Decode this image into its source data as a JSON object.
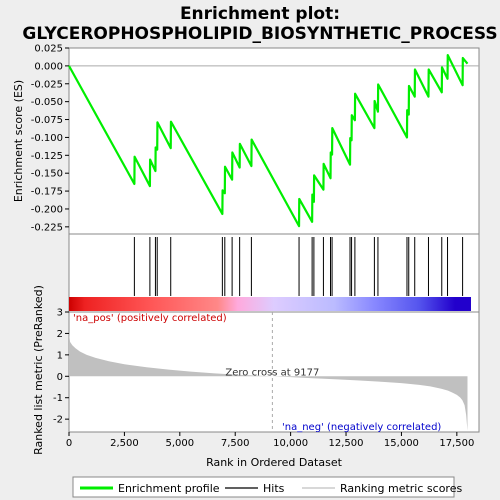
{
  "chart_data": {
    "type": "line",
    "title": "Enrichment plot: GLYCEROPHOSPHOLIPID_BIOSYNTHETIC_PROCESS",
    "title_lines": [
      "Enrichment plot:",
      "GLYCEROPHOSPHOLIPID_BIOSYNTHETIC_PROCESS"
    ],
    "es_panel": {
      "ylabel": "Enrichment score (ES)",
      "ylim": [
        -0.235,
        0.025
      ],
      "yticks": [
        0.025,
        0.0,
        -0.025,
        -0.05,
        -0.075,
        -0.1,
        -0.125,
        -0.15,
        -0.175,
        -0.2,
        -0.225
      ],
      "ytick_labels": [
        "0.025",
        "0.000",
        "-0.025",
        "-0.050",
        "-0.075",
        "-0.100",
        "-0.125",
        "-0.150",
        "-0.175",
        "-0.200",
        "-0.225"
      ],
      "line_color": "#00ee00",
      "series": {
        "name": "Enrichment profile",
        "x": [
          0,
          2950,
          2960,
          3650,
          3660,
          3900,
          3910,
          3980,
          3990,
          4590,
          4600,
          6920,
          6930,
          7030,
          7040,
          7360,
          7370,
          7700,
          7710,
          8230,
          8240,
          10380,
          10390,
          10970,
          10980,
          11050,
          11060,
          11480,
          11490,
          11800,
          11810,
          11870,
          11880,
          12680,
          12690,
          12750,
          12760,
          12900,
          12910,
          13780,
          13790,
          13940,
          13950,
          15250,
          15260,
          15330,
          15340,
          15600,
          15610,
          16220,
          16230,
          16820,
          16830,
          17080,
          17090,
          17760,
          17770,
          17980
        ],
        "y": [
          0.0,
          -0.165,
          -0.127,
          -0.168,
          -0.131,
          -0.147,
          -0.114,
          -0.117,
          -0.079,
          -0.115,
          -0.078,
          -0.207,
          -0.174,
          -0.178,
          -0.141,
          -0.159,
          -0.121,
          -0.142,
          -0.109,
          -0.14,
          -0.103,
          -0.224,
          -0.186,
          -0.218,
          -0.18,
          -0.19,
          -0.153,
          -0.173,
          -0.137,
          -0.157,
          -0.121,
          -0.124,
          -0.087,
          -0.138,
          -0.101,
          -0.104,
          -0.069,
          -0.076,
          -0.039,
          -0.087,
          -0.049,
          -0.064,
          -0.026,
          -0.1,
          -0.062,
          -0.068,
          -0.028,
          -0.043,
          -0.005,
          -0.043,
          -0.005,
          -0.037,
          -0.002,
          -0.018,
          0.015,
          -0.027,
          0.011,
          0.003
        ]
      }
    },
    "hits": {
      "name": "Hits",
      "x": [
        2950,
        3650,
        3900,
        3980,
        4590,
        6920,
        7030,
        7360,
        7700,
        8230,
        10380,
        10970,
        11050,
        11480,
        11800,
        11870,
        12680,
        12750,
        12900,
        13780,
        13940,
        15250,
        15330,
        15600,
        16220,
        16820,
        17080,
        17760
      ]
    },
    "gradient_bar": {
      "stops": [
        {
          "offset": 0.0,
          "color": "#cc0000"
        },
        {
          "offset": 0.04,
          "color": "#ee2222"
        },
        {
          "offset": 0.2,
          "color": "#ff5555"
        },
        {
          "offset": 0.37,
          "color": "#ff8888"
        },
        {
          "offset": 0.42,
          "color": "#ffaadd"
        },
        {
          "offset": 0.51,
          "color": "#ddccff"
        },
        {
          "offset": 0.66,
          "color": "#bbbbff"
        },
        {
          "offset": 0.76,
          "color": "#8888ff"
        },
        {
          "offset": 0.87,
          "color": "#5555ee"
        },
        {
          "offset": 0.96,
          "color": "#2200cc"
        },
        {
          "offset": 1.0,
          "color": "#2200cc"
        }
      ]
    },
    "metric_panel": {
      "ylabel": "Ranked list metric (PreRanked)",
      "ylim": [
        -2.6,
        3.0
      ],
      "yticks": [
        3,
        2,
        1,
        0,
        -1,
        -2
      ],
      "ytick_labels": [
        "3",
        "2",
        "1",
        "0",
        "-1",
        "-2"
      ],
      "fill_color": "#c0c0c0",
      "name": "Ranking metric scores",
      "x": [
        0,
        50,
        150,
        300,
        500,
        800,
        1200,
        1800,
        2500,
        3500,
        4500,
        5500,
        6500,
        7500,
        8500,
        9177,
        10000,
        11000,
        12000,
        13000,
        14000,
        15000,
        15800,
        16300,
        16800,
        17100,
        17300,
        17500,
        17650,
        17750,
        17850,
        17920,
        17980
      ],
      "y": [
        2.0,
        1.6,
        1.45,
        1.3,
        1.15,
        1.0,
        0.86,
        0.7,
        0.56,
        0.42,
        0.31,
        0.22,
        0.14,
        0.08,
        0.03,
        0.0,
        -0.04,
        -0.09,
        -0.14,
        -0.19,
        -0.25,
        -0.32,
        -0.4,
        -0.47,
        -0.58,
        -0.67,
        -0.76,
        -0.87,
        -0.99,
        -1.12,
        -1.35,
        -1.8,
        -2.55
      ],
      "zero_cross_label": "Zero cross at 9177",
      "zero_cross_x": 9177,
      "pos_label": "'na_pos' (positively correlated)",
      "neg_label": "'na_neg' (negatively correlated)"
    },
    "xaxis": {
      "xlabel": "Rank in Ordered Dataset",
      "xlim": [
        0,
        18500
      ],
      "xticks": [
        0,
        2500,
        5000,
        7500,
        10000,
        12500,
        15000,
        17500
      ],
      "xtick_labels": [
        "0",
        "2,500",
        "5,000",
        "7,500",
        "10,000",
        "12,500",
        "15,000",
        "17,500"
      ]
    },
    "legend": {
      "placement": "bottom",
      "entries": [
        {
          "label": "Enrichment profile",
          "color": "#00ee00",
          "kind": "thick-line"
        },
        {
          "label": "Hits",
          "color": "#000000",
          "kind": "line"
        },
        {
          "label": "Ranking metric scores",
          "color": "#c0c0c0",
          "kind": "line"
        }
      ]
    }
  }
}
